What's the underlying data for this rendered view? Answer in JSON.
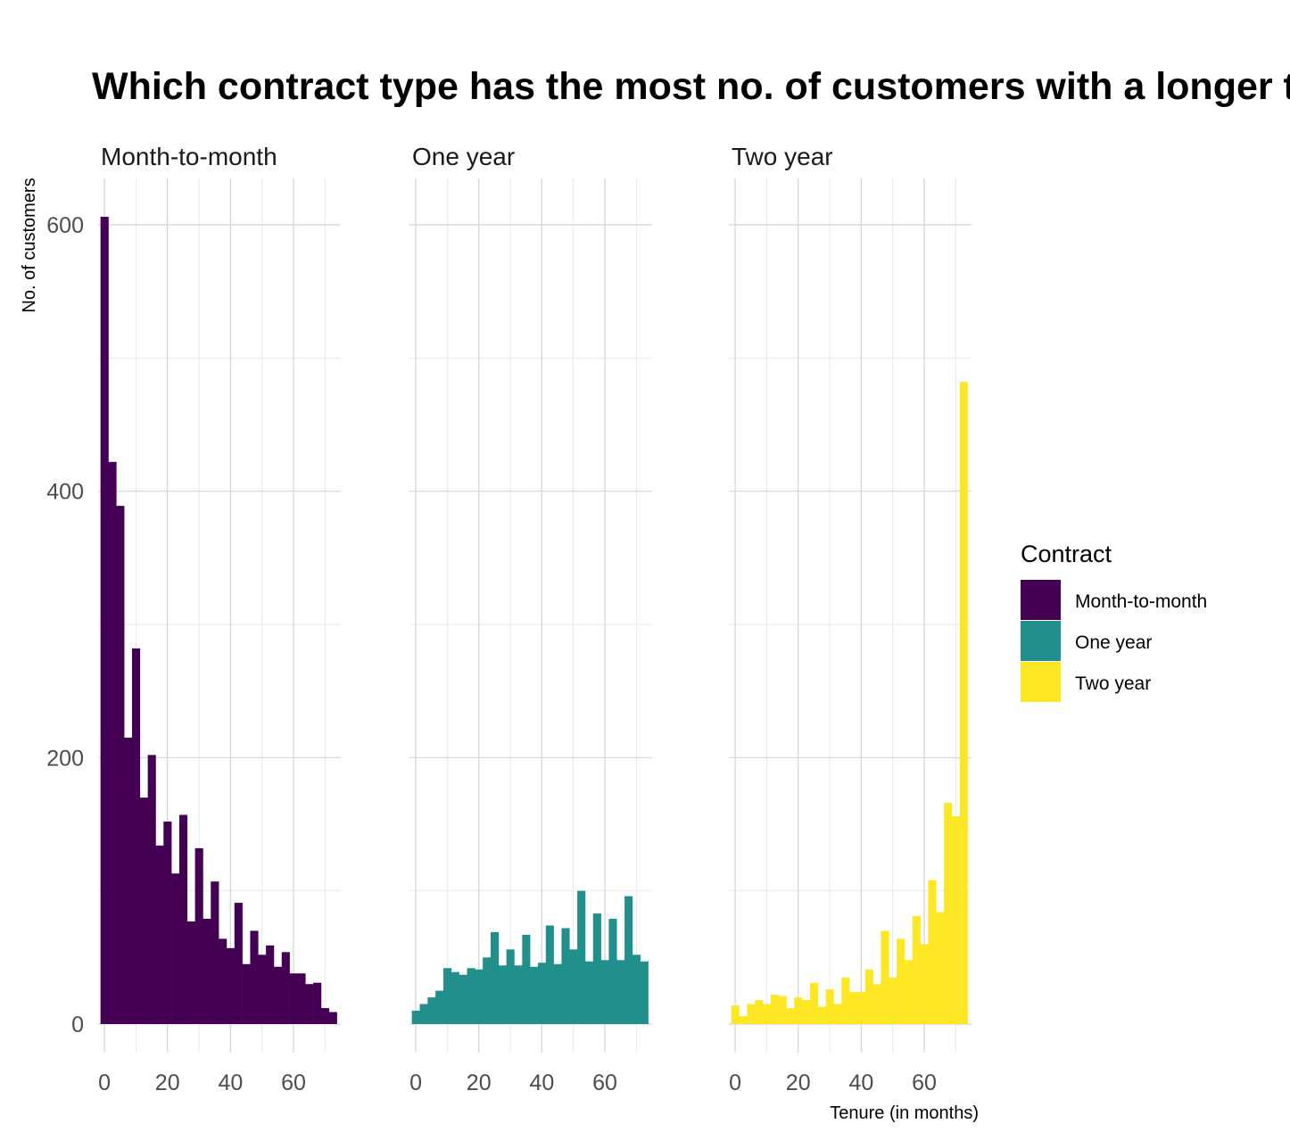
{
  "chart_data": {
    "type": "bar",
    "title": "Which contract type has the most no. of customers with a longer tenure",
    "xlabel": "Tenure (in months)",
    "ylabel": "No. of customers",
    "xlim": [
      -2,
      75
    ],
    "ylim": [
      -30,
      640
    ],
    "x_ticks": [
      0,
      20,
      40,
      60
    ],
    "y_ticks": [
      0,
      200,
      400,
      600
    ],
    "bin_width": 2.5,
    "bin_start": -1.25,
    "grid": true,
    "legend_position": "right",
    "legend_title": "Contract",
    "facets": [
      {
        "name": "Month-to-month",
        "color": "#440154",
        "values": [
          606,
          422,
          389,
          215,
          282,
          170,
          202,
          134,
          152,
          113,
          157,
          77,
          132,
          79,
          107,
          64,
          57,
          91,
          45,
          70,
          52,
          59,
          43,
          54,
          38,
          38,
          30,
          31,
          12,
          9
        ]
      },
      {
        "name": "One year",
        "color": "#21908C",
        "values": [
          10,
          15,
          20,
          25,
          42,
          39,
          37,
          42,
          41,
          50,
          69,
          44,
          56,
          44,
          67,
          43,
          46,
          74,
          45,
          72,
          56,
          100,
          47,
          83,
          48,
          79,
          48,
          96,
          52,
          47
        ]
      },
      {
        "name": "Two year",
        "color": "#FDE725",
        "values": [
          14,
          6,
          15,
          18,
          15,
          22,
          21,
          12,
          20,
          18,
          31,
          13,
          26,
          15,
          35,
          24,
          24,
          41,
          30,
          70,
          35,
          64,
          48,
          81,
          60,
          108,
          84,
          166,
          156,
          482
        ]
      }
    ]
  }
}
